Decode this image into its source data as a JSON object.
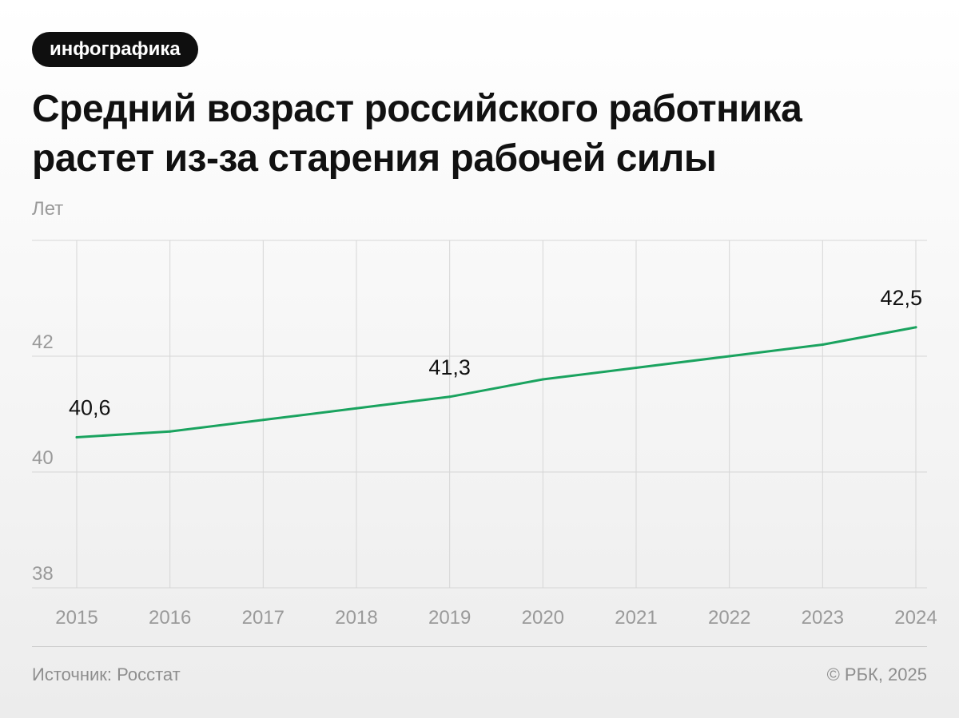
{
  "badge": "инфографика",
  "title_line1": "Средний возраст российского работника",
  "title_line2": "растет из-за старения рабочей силы",
  "footer": {
    "source": "Источник: Росстат",
    "copyright": "© РБК, 2025"
  },
  "colors": {
    "line": "#1aa35f",
    "grid": "#d6d6d6",
    "tick": "#9a9a9a",
    "label": "#111111"
  },
  "chart_data": {
    "type": "line",
    "title": "Средний возраст российского работника растет из-за старения рабочей силы",
    "ylabel": "Лет",
    "xlabel": "",
    "x": [
      "2015",
      "2016",
      "2017",
      "2018",
      "2019",
      "2020",
      "2021",
      "2022",
      "2023",
      "2024"
    ],
    "series": [
      {
        "values": [
          40.6,
          40.7,
          40.9,
          41.1,
          41.3,
          41.6,
          41.8,
          42.0,
          42.2,
          42.5
        ]
      }
    ],
    "ylim": [
      38,
      44
    ],
    "yticks": [
      38,
      40,
      42
    ],
    "data_labels": [
      {
        "x": "2015",
        "value": 40.6,
        "text": "40,6"
      },
      {
        "x": "2019",
        "value": 41.3,
        "text": "41,3"
      },
      {
        "x": "2024",
        "value": 42.5,
        "text": "42,5"
      }
    ],
    "grid": true,
    "legend": "none"
  }
}
